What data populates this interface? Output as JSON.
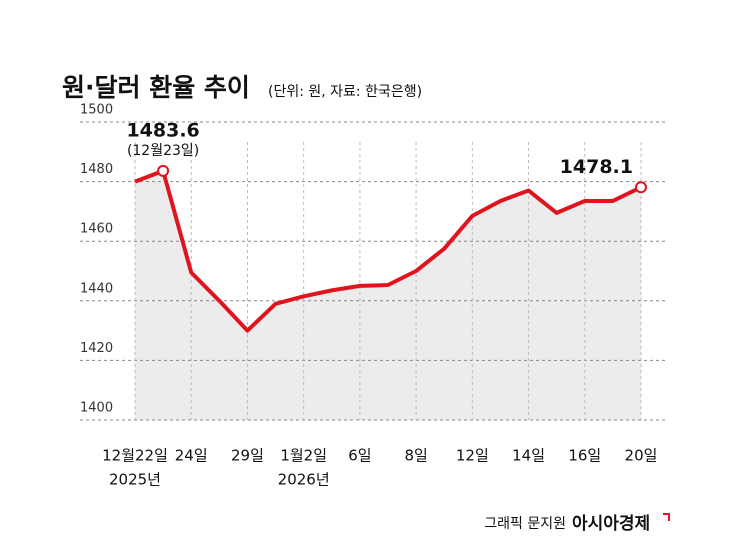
{
  "chart_data": {
    "type": "line",
    "title": "원·달러 환율 추이",
    "subtitle": "(단위: 원, 자료: 한국은행)",
    "categories": [
      "12월22일",
      null,
      "24일",
      null,
      "29일",
      null,
      "1월2일",
      null,
      "6일",
      null,
      "8일",
      null,
      "12일",
      null,
      "14일",
      null,
      "16일",
      null,
      "20일"
    ],
    "year_labels": [
      "2025년",
      null,
      null,
      null,
      null,
      null,
      "2026년",
      null,
      null,
      null,
      null,
      null,
      null,
      null,
      null,
      null,
      null,
      null,
      null
    ],
    "values": [
      1480,
      1483.6,
      1449.5,
      1440,
      1430,
      1439,
      1441.5,
      1443.5,
      1445,
      1445.3,
      1450,
      1457.5,
      1468.5,
      1473.5,
      1477,
      1469.5,
      1473.5,
      1473.5,
      1478.1
    ],
    "annotation": "(12월23일)",
    "color": "#e0141e",
    "area_color": "#ececec",
    "ylim": [
      1400,
      1500
    ],
    "yticks": [
      1400,
      1420,
      1440,
      1460,
      1480,
      1500
    ],
    "grid": true,
    "credit": "그래픽 문지원",
    "brand": "아시아경제"
  }
}
